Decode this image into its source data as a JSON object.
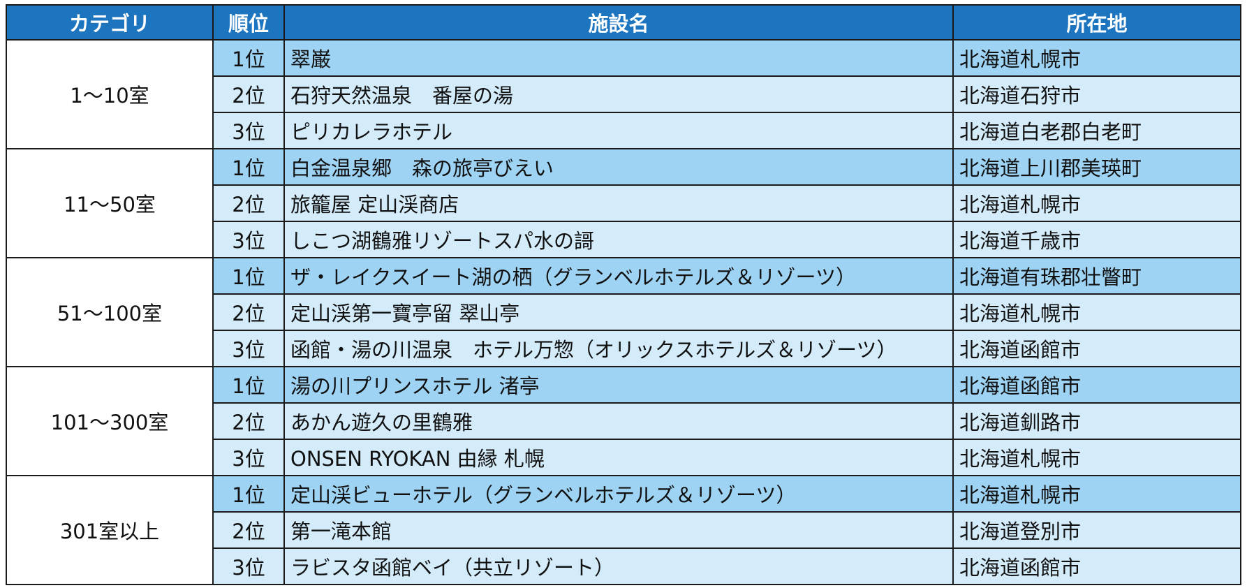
{
  "header": {
    "category": "カテゴリ",
    "rank": "順位",
    "name": "施設名",
    "location": "所在地"
  },
  "groups": [
    {
      "category": "1～10室",
      "rows": [
        {
          "rank": "1位",
          "name": "翠巌",
          "location": "北海道札幌市"
        },
        {
          "rank": "2位",
          "name": "石狩天然温泉　番屋の湯",
          "location": "北海道石狩市"
        },
        {
          "rank": "3位",
          "name": "ピリカレラホテル",
          "location": "北海道白老郡白老町"
        }
      ]
    },
    {
      "category": "11～50室",
      "rows": [
        {
          "rank": "1位",
          "name": "白金温泉郷　森の旅亭びえい",
          "location": "北海道上川郡美瑛町"
        },
        {
          "rank": "2位",
          "name": "旅籠屋 定山渓商店",
          "location": "北海道札幌市"
        },
        {
          "rank": "3位",
          "name": "しこつ湖鶴雅リゾートスパ水の謌",
          "location": "北海道千歳市"
        }
      ]
    },
    {
      "category": "51～100室",
      "rows": [
        {
          "rank": "1位",
          "name": "ザ・レイクスイート湖の栖（グランベルホテルズ＆リゾーツ）",
          "location": "北海道有珠郡壮瞥町"
        },
        {
          "rank": "2位",
          "name": "定山渓第一寶亭留 翠山亭",
          "location": "北海道札幌市"
        },
        {
          "rank": "3位",
          "name": "函館・湯の川温泉　ホテル万惣（オリックスホテルズ＆リゾーツ）",
          "location": "北海道函館市"
        }
      ]
    },
    {
      "category": "101～300室",
      "rows": [
        {
          "rank": "1位",
          "name": "湯の川プリンスホテル 渚亭",
          "location": "北海道函館市"
        },
        {
          "rank": "2位",
          "name": "あかん遊久の里鶴雅",
          "location": "北海道釧路市"
        },
        {
          "rank": "3位",
          "name": "ONSEN RYOKAN 由縁 札幌",
          "location": "北海道札幌市"
        }
      ]
    },
    {
      "category": "301室以上",
      "rows": [
        {
          "rank": "1位",
          "name": "定山渓ビューホテル（グランベルホテルズ＆リゾーツ）",
          "location": "北海道札幌市"
        },
        {
          "rank": "2位",
          "name": "第一滝本館",
          "location": "北海道登別市"
        },
        {
          "rank": "3位",
          "name": "ラビスタ函館ベイ（共立リゾート）",
          "location": "北海道函館市"
        }
      ]
    }
  ],
  "colors": {
    "header_bg": "#1d74bf",
    "rank1_row_bg": "#9ed3f4",
    "other_row_bg": "#d4ebfa",
    "border": "#1a1a1a"
  }
}
